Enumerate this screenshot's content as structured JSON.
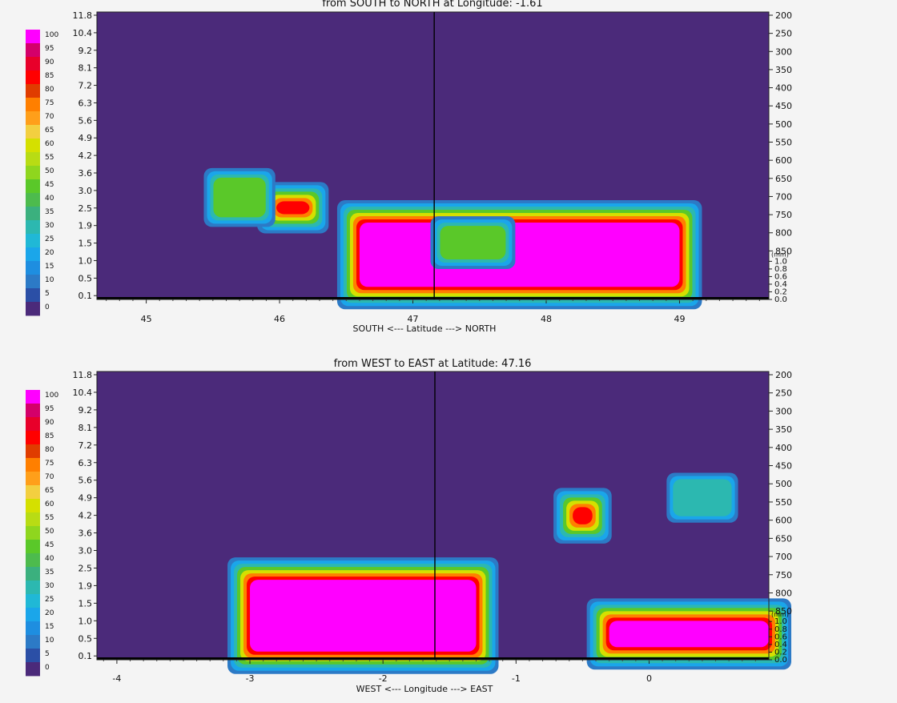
{
  "legend": {
    "labels": [
      "100",
      "95",
      "90",
      "85",
      "80",
      "75",
      "70",
      "65",
      "60",
      "55",
      "50",
      "45",
      "40",
      "35",
      "30",
      "25",
      "20",
      "15",
      "10",
      "5",
      "0"
    ],
    "colors": [
      "#ff00ff",
      "#d4006a",
      "#e8002a",
      "#ff0000",
      "#e03c00",
      "#ff7f00",
      "#ff9f1a",
      "#f3cf40",
      "#d5e000",
      "#b8dc14",
      "#8fd61e",
      "#5ac829",
      "#4dbb4d",
      "#3bb07e",
      "#2cb8b0",
      "#20b8d6",
      "#1aa6ea",
      "#1e8ee0",
      "#2c7ac6",
      "#2b4fa6",
      "#4b2a7a"
    ],
    "levels": [
      0,
      5,
      10,
      15,
      20,
      25,
      30,
      35,
      40,
      45,
      50,
      55,
      60,
      65,
      70,
      75,
      80,
      85,
      90,
      95,
      100
    ]
  },
  "charts": [
    {
      "title": "from SOUTH to NORTH at Longitude:  -1.61",
      "xlabel": "SOUTH <---   Latitude   ---> NORTH",
      "left_ticks": [
        "11.8",
        "10.4",
        "9.2",
        "8.1",
        "7.2",
        "6.3",
        "5.6",
        "4.9",
        "4.2",
        "3.6",
        "3.0",
        "2.5",
        "1.9",
        "1.5",
        "1.0",
        "0.5",
        "0.1"
      ],
      "right_ticks": [
        "200",
        "250",
        "300",
        "350",
        "400",
        "450",
        "500",
        "550",
        "600",
        "650",
        "700",
        "750",
        "800",
        "850"
      ],
      "precip_unit": "(mm)",
      "precip_ticks": [
        "1.0",
        "0.8",
        "0.6",
        "0.4",
        "0.2",
        "0.0"
      ],
      "x_tick_labels": [
        "45",
        "46",
        "47",
        "48",
        "49"
      ]
    },
    {
      "title": "from WEST to EAST at Latitude:  47.16",
      "xlabel": "WEST <---   Longitude    ---> EAST",
      "left_ticks": [
        "11.8",
        "10.4",
        "9.2",
        "8.1",
        "7.2",
        "6.3",
        "5.6",
        "4.9",
        "4.2",
        "3.6",
        "3.0",
        "2.5",
        "1.9",
        "1.5",
        "1.0",
        "0.5",
        "0.1"
      ],
      "right_ticks": [
        "200",
        "250",
        "300",
        "350",
        "400",
        "450",
        "500",
        "550",
        "600",
        "650",
        "700",
        "750",
        "800",
        "850"
      ],
      "precip_unit": "(mm)",
      "precip_ticks": [
        "1.0",
        "0.8",
        "0.6",
        "0.4",
        "0.2",
        "0.0"
      ],
      "x_tick_labels": [
        "-4",
        "-3",
        "-2",
        "-1",
        "0"
      ]
    }
  ],
  "chart_data": [
    {
      "type": "heatmap",
      "title": "from SOUTH to NORTH at Longitude:  -1.61",
      "xlabel": "SOUTH <---   Latitude   ---> NORTH",
      "x_range": [
        44.63,
        49.67
      ],
      "x_ticks": [
        45,
        46,
        47,
        48,
        49
      ],
      "cross_section_marker_x": 47.16,
      "colorbar_range": [
        0,
        100
      ],
      "background_value": 0,
      "blobs": [
        {
          "x": [
            46.6,
            49.0
          ],
          "y": [
            0.3,
            2.0
          ],
          "value": 100
        },
        {
          "x": [
            47.3,
            47.6
          ],
          "y": [
            1.4,
            1.6
          ],
          "value": 50
        },
        {
          "x": [
            46.0,
            46.2
          ],
          "y": [
            2.4,
            2.6
          ],
          "value": 90
        },
        {
          "x": [
            45.6,
            45.8
          ],
          "y": [
            2.6,
            3.0
          ],
          "value": 45
        }
      ]
    },
    {
      "type": "heatmap",
      "title": "from WEST to EAST at Latitude:  47.16",
      "xlabel": "WEST <---   Longitude    ---> EAST",
      "x_range": [
        -4.15,
        0.9
      ],
      "x_ticks": [
        -4,
        -3,
        -2,
        -1,
        0
      ],
      "cross_section_marker_x": -1.61,
      "colorbar_range": [
        0,
        100
      ],
      "background_value": 0,
      "blobs": [
        {
          "x": [
            -3.0,
            -1.3
          ],
          "y": [
            0.2,
            2.1
          ],
          "value": 100
        },
        {
          "x": [
            -0.3,
            0.9
          ],
          "y": [
            0.3,
            1.0
          ],
          "value": 100
        },
        {
          "x": [
            -0.55,
            -0.45
          ],
          "y": [
            4.0,
            4.4
          ],
          "value": 90
        },
        {
          "x": [
            0.3,
            0.5
          ],
          "y": [
            4.8,
            5.0
          ],
          "value": 40
        }
      ]
    }
  ]
}
